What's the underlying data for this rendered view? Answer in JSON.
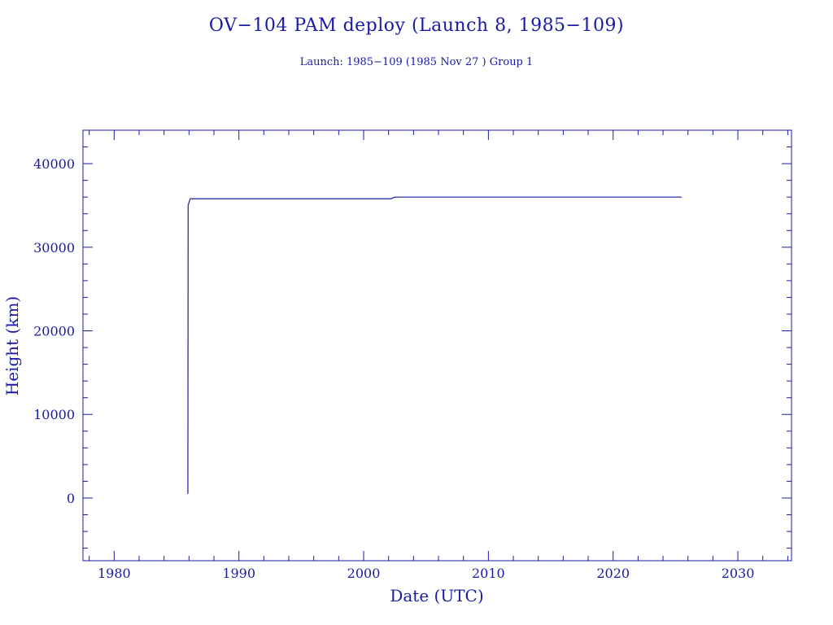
{
  "chart_data": {
    "type": "line",
    "title": "OV−104 PAM deploy (Launch 8, 1985−109)",
    "subtitle": "Launch: 1985−109  (1985 Nov 27 )  Group 1",
    "xlabel": "Date (UTC)",
    "ylabel": "Height (km)",
    "xlim": [
      1977.5,
      2034.3
    ],
    "ylim": [
      -7500,
      44000
    ],
    "x_ticks": [
      1980,
      1990,
      2000,
      2010,
      2020,
      2030
    ],
    "x_tick_labels": [
      "1980",
      "1990",
      "2000",
      "2010",
      "2020",
      "2030"
    ],
    "y_ticks": [
      0,
      10000,
      20000,
      30000,
      40000
    ],
    "y_tick_labels": [
      "0",
      "10000",
      "20000",
      "30000",
      "40000"
    ],
    "grid": false,
    "series": [
      {
        "color": "#1a1aa6",
        "points": [
          [
            1985.91,
            500
          ],
          [
            1985.93,
            35000
          ],
          [
            1986.05,
            35600
          ],
          [
            1986.1,
            35800
          ],
          [
            1992.0,
            35800
          ],
          [
            2002.2,
            35800
          ],
          [
            2002.5,
            36000
          ],
          [
            2025.5,
            36000
          ]
        ]
      }
    ]
  }
}
